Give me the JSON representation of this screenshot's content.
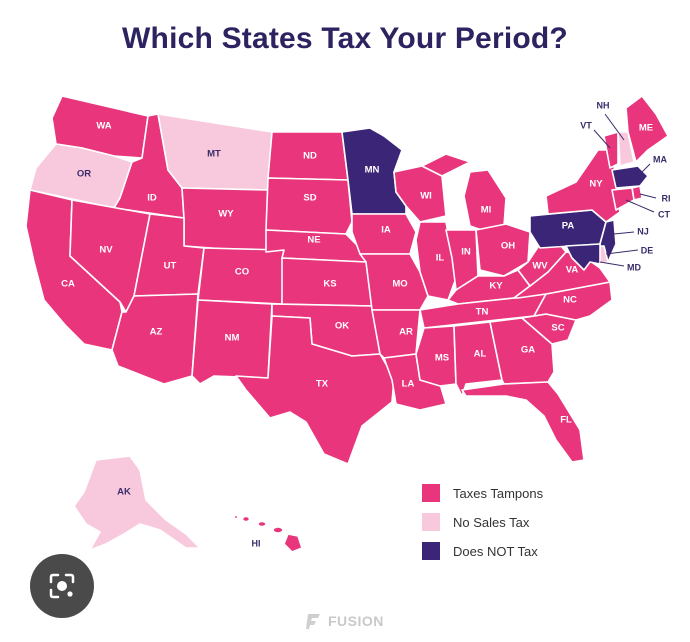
{
  "title": "Which States Tax Your Period?",
  "colors": {
    "taxes": "#e8357c",
    "no_sales_tax": "#f8c8dc",
    "not_tax": "#3b2577"
  },
  "legend": [
    {
      "label": "Taxes Tampons",
      "category": "taxes"
    },
    {
      "label": "No Sales Tax",
      "category": "no_sales_tax"
    },
    {
      "label": "Does NOT Tax",
      "category": "not_tax"
    }
  ],
  "states": {
    "WA": "taxes",
    "OR": "no_sales_tax",
    "CA": "taxes",
    "ID": "taxes",
    "NV": "taxes",
    "MT": "no_sales_tax",
    "WY": "taxes",
    "UT": "taxes",
    "AZ": "taxes",
    "CO": "taxes",
    "NM": "taxes",
    "ND": "taxes",
    "SD": "taxes",
    "NE": "taxes",
    "KS": "taxes",
    "OK": "taxes",
    "TX": "taxes",
    "MN": "not_tax",
    "IA": "taxes",
    "MO": "taxes",
    "AR": "taxes",
    "LA": "taxes",
    "WI": "taxes",
    "IL": "taxes",
    "MI": "taxes",
    "IN": "taxes",
    "OH": "taxes",
    "KY": "taxes",
    "TN": "taxes",
    "MS": "taxes",
    "AL": "taxes",
    "GA": "taxes",
    "FL": "taxes",
    "SC": "taxes",
    "NC": "taxes",
    "VA": "taxes",
    "WV": "taxes",
    "PA": "not_tax",
    "NY": "taxes",
    "VT": "taxes",
    "NH": "no_sales_tax",
    "ME": "taxes",
    "MA": "not_tax",
    "RI": "taxes",
    "CT": "taxes",
    "NJ": "not_tax",
    "DE": "no_sales_tax",
    "MD": "not_tax",
    "AK": "no_sales_tax",
    "HI": "taxes"
  },
  "labels": {
    "WA": "WA",
    "OR": "OR",
    "CA": "CA",
    "ID": "ID",
    "NV": "NV",
    "MT": "MT",
    "WY": "WY",
    "UT": "UT",
    "AZ": "AZ",
    "CO": "CO",
    "NM": "NM",
    "ND": "ND",
    "SD": "SD",
    "NE": "NE",
    "KS": "KS",
    "OK": "OK",
    "TX": "TX",
    "MN": "MN",
    "IA": "IA",
    "MO": "MO",
    "AR": "AR",
    "LA": "LA",
    "WI": "WI",
    "IL": "IL",
    "MI": "MI",
    "IN": "IN",
    "OH": "OH",
    "KY": "KY",
    "TN": "TN",
    "MS": "MS",
    "AL": "AL",
    "GA": "GA",
    "FL": "FL",
    "SC": "SC",
    "NC": "NC",
    "VA": "VA",
    "WV": "WV",
    "PA": "PA",
    "NY": "NY",
    "VT": "VT",
    "NH": "NH",
    "ME": "ME",
    "MA": "MA",
    "RI": "RI",
    "CT": "CT",
    "NJ": "NJ",
    "DE": "DE",
    "MD": "MD",
    "AK": "AK",
    "HI": "HI"
  },
  "brand": "FUSION",
  "icons": {
    "lens": "image-search-icon",
    "brand": "fusion-logo-icon"
  }
}
